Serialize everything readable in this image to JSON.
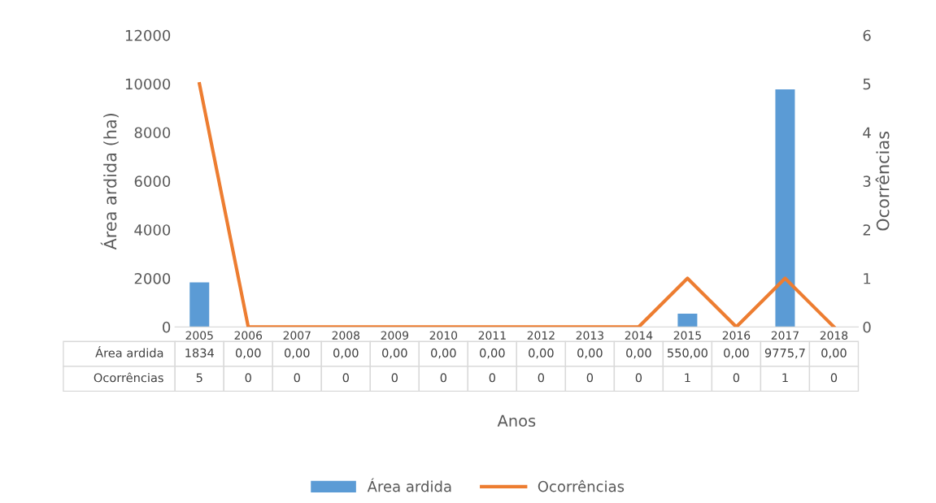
{
  "chart_data": {
    "type": "bar",
    "xlabel": "Anos",
    "ylabel": "Área ardida (ha)",
    "y2label": "Ocorrências",
    "categories": [
      "2005",
      "2006",
      "2007",
      "2008",
      "2009",
      "2010",
      "2011",
      "2012",
      "2013",
      "2014",
      "2015",
      "2016",
      "2017",
      "2018"
    ],
    "series": [
      {
        "name": "Área ardida",
        "color": "#5b9bd5",
        "values": [
          1834,
          0,
          0,
          0,
          0,
          0,
          0,
          0,
          0,
          0,
          550,
          0,
          9775.7,
          0
        ],
        "value_labels": [
          "1834",
          "0,00",
          "0,00",
          "0,00",
          "0,00",
          "0,00",
          "0,00",
          "0,00",
          "0,00",
          "0,00",
          "550,00",
          "0,00",
          "9775,7",
          "0,00"
        ]
      },
      {
        "name": "Ocorrências",
        "type": "line",
        "axis": "y2",
        "color": "#ed7d31",
        "values": [
          5,
          0,
          0,
          0,
          0,
          0,
          0,
          0,
          0,
          0,
          1,
          0,
          1,
          0
        ],
        "value_labels": [
          "5",
          "0",
          "0",
          "0",
          "0",
          "0",
          "0",
          "0",
          "0",
          "0",
          "1",
          "0",
          "1",
          "0"
        ]
      }
    ],
    "ylim": [
      0,
      12000
    ],
    "yticks": [
      0,
      2000,
      4000,
      6000,
      8000,
      10000,
      12000
    ],
    "y2lim": [
      0,
      6
    ],
    "y2ticks": [
      0,
      1,
      2,
      3,
      4,
      5,
      6
    ],
    "grid": false,
    "legend": "bottom",
    "marker": "none",
    "line_style": "solid"
  }
}
